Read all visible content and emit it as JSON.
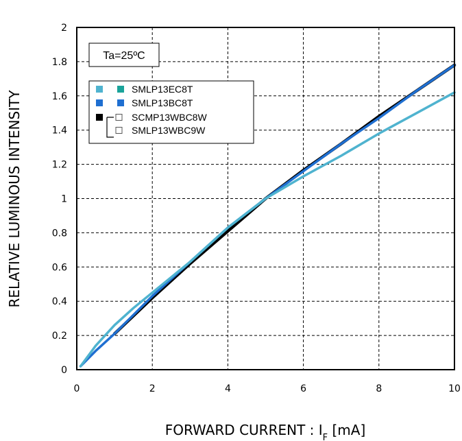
{
  "chart_data": {
    "type": "line",
    "title": "",
    "xlabel": "FORWARD CURRENT : I",
    "xlabel_sub": "F",
    "xlabel_unit": " [mA]",
    "ylabel": "RELATIVE LUMINOUS INTENSITY",
    "xlim": [
      0,
      10
    ],
    "ylim": [
      0,
      2
    ],
    "x_ticks": [
      "0",
      "2",
      "4",
      "6",
      "8",
      "10"
    ],
    "y_ticks": [
      "0",
      "0.2",
      "0.4",
      "0.6",
      "0.8",
      "1",
      "1.2",
      "1.4",
      "1.6",
      "1.8",
      "2"
    ],
    "grid": true,
    "legend_position": "top-left",
    "annotation": "Ta=25ºC",
    "colors": {
      "teal_light": "#4FB3CF",
      "teal": "#1AA39A",
      "blue": "#1F6FD1",
      "black": "#000000",
      "white": "#ffffff"
    },
    "legend": [
      {
        "label": "SMLP13EC8T",
        "swatches": [
          "#4FB3CF",
          "#1AA39A"
        ]
      },
      {
        "label": "SMLP13BC8T",
        "swatches": [
          "#1F6FD1",
          "#1F6FD1"
        ]
      },
      {
        "label": "SCMP13WBC8W",
        "swatches": [
          "#000000",
          "#ffffff"
        ]
      },
      {
        "label": "SMLP13WBC9W",
        "swatches": [
          null,
          "#ffffff"
        ]
      }
    ],
    "series": [
      {
        "color": "#000000",
        "x": [
          1,
          2,
          3,
          4,
          5,
          6,
          7,
          8,
          9,
          10
        ],
        "y": [
          0.21,
          0.42,
          0.62,
          0.81,
          1.0,
          1.165,
          1.32,
          1.48,
          1.63,
          1.78
        ]
      },
      {
        "color": "#1F6FD1",
        "x": [
          0.1,
          0.5,
          1,
          2,
          3,
          4,
          5,
          6,
          7,
          8,
          9,
          10
        ],
        "y": [
          0.02,
          0.11,
          0.21,
          0.43,
          0.63,
          0.83,
          1.0,
          1.16,
          1.32,
          1.47,
          1.63,
          1.78
        ]
      },
      {
        "color": "#4FB3CF",
        "x": [
          0.1,
          0.5,
          1,
          1.5,
          2,
          3,
          4,
          5,
          6,
          7,
          8,
          9,
          10
        ],
        "y": [
          0.02,
          0.14,
          0.26,
          0.36,
          0.45,
          0.63,
          0.83,
          1.0,
          1.13,
          1.25,
          1.38,
          1.5,
          1.62
        ]
      }
    ]
  }
}
